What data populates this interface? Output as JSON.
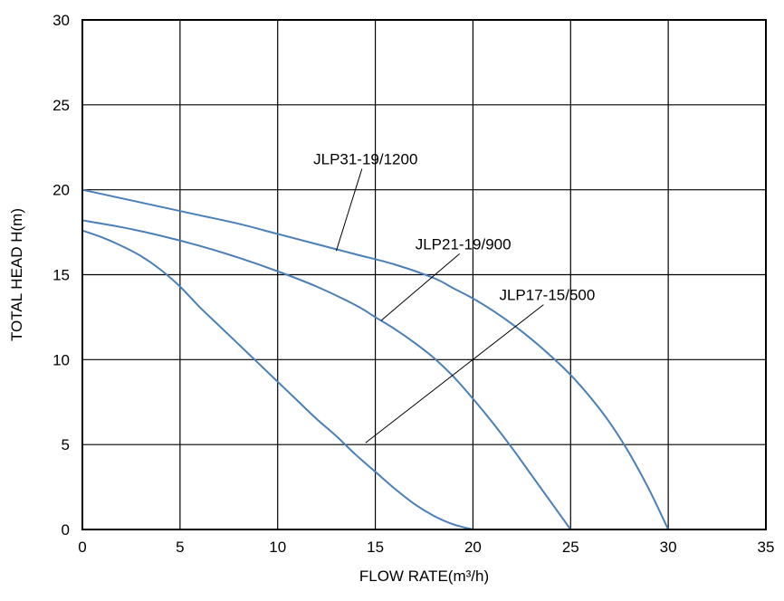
{
  "chart_data": {
    "type": "line",
    "xlabel": "FLOW RATE(m³/h)",
    "ylabel": "TOTAL HEAD H(m)",
    "xlim": [
      0,
      35
    ],
    "ylim": [
      0,
      30
    ],
    "xticks": [
      0,
      5,
      10,
      15,
      20,
      25,
      30,
      35
    ],
    "yticks": [
      0,
      5,
      10,
      15,
      20,
      25,
      30
    ],
    "grid": true,
    "line_color": "#4a7fb8",
    "series": [
      {
        "name": "JLP31-19/1200",
        "x": [
          0,
          2,
          4,
          6,
          8,
          10,
          12,
          14,
          16,
          18,
          19,
          20,
          21,
          22,
          23,
          24,
          25,
          26,
          27,
          28,
          29,
          30
        ],
        "y": [
          20.0,
          19.5,
          19.0,
          18.5,
          18.0,
          17.4,
          16.8,
          16.2,
          15.6,
          14.8,
          14.2,
          13.6,
          12.9,
          12.1,
          11.2,
          10.2,
          9.1,
          7.8,
          6.3,
          4.5,
          2.4,
          0.0
        ]
      },
      {
        "name": "JLP21-19/900",
        "x": [
          0,
          2,
          4,
          6,
          8,
          10,
          12,
          14,
          15,
          16,
          17,
          18,
          19,
          20,
          21,
          22,
          23,
          24,
          25
        ],
        "y": [
          18.2,
          17.8,
          17.3,
          16.7,
          16.0,
          15.2,
          14.3,
          13.2,
          12.5,
          11.8,
          11.0,
          10.1,
          9.0,
          7.7,
          6.3,
          4.8,
          3.2,
          1.6,
          0.0
        ]
      },
      {
        "name": "JLP17-15/500",
        "x": [
          0,
          1,
          2,
          3,
          4,
          5,
          6,
          7,
          8,
          9,
          10,
          11,
          12,
          13,
          14,
          15,
          16,
          17,
          18,
          19,
          20
        ],
        "y": [
          17.6,
          17.2,
          16.7,
          16.1,
          15.3,
          14.3,
          13.1,
          12.0,
          10.9,
          9.8,
          8.7,
          7.6,
          6.5,
          5.5,
          4.4,
          3.4,
          2.4,
          1.5,
          0.8,
          0.3,
          0.0
        ]
      }
    ],
    "annotations": [
      {
        "text": "JLP31-19/1200",
        "series": "JLP31-19/1200",
        "label_at": [
          14.5,
          21.5
        ],
        "point_at": [
          13.0,
          16.4
        ]
      },
      {
        "text": "JLP21-19/900",
        "series": "JLP21-19/900",
        "label_at": [
          19.5,
          16.5
        ],
        "point_at": [
          15.3,
          12.3
        ]
      },
      {
        "text": "JLP17-15/500",
        "series": "JLP17-15/500",
        "label_at": [
          23.8,
          13.5
        ],
        "point_at": [
          14.5,
          5.1
        ]
      }
    ]
  }
}
